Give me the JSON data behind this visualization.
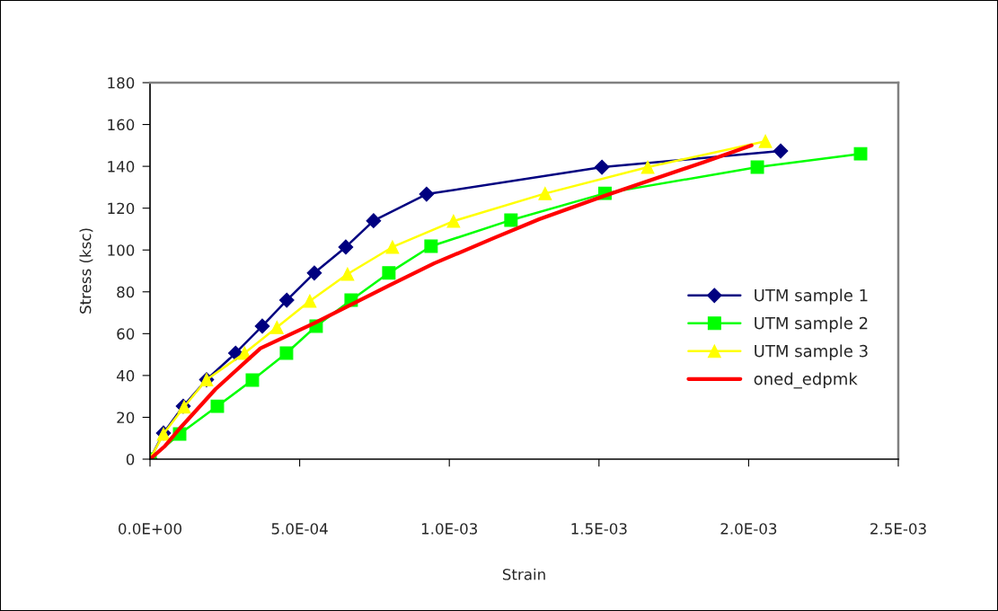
{
  "chart_data": {
    "type": "line",
    "xlabel": "Strain",
    "ylabel": "Stress (ksc)",
    "xlim": [
      0,
      0.0025
    ],
    "ylim": [
      0,
      180
    ],
    "xticks": [
      {
        "value": 0,
        "label": "0.0E+00"
      },
      {
        "value": 0.0005,
        "label": "5.0E-04"
      },
      {
        "value": 0.001,
        "label": "1.0E-03"
      },
      {
        "value": 0.0015,
        "label": "1.5E-03"
      },
      {
        "value": 0.002,
        "label": "2.0E-03"
      },
      {
        "value": 0.0025,
        "label": "2.5E-03"
      }
    ],
    "yticks": [
      0,
      20,
      40,
      60,
      80,
      100,
      120,
      140,
      160,
      180
    ],
    "grid": false,
    "legend": "right",
    "series": [
      {
        "name": "UTM sample 1",
        "color": "#000080",
        "marker": "diamond",
        "x": [
          0,
          4.5e-05,
          0.000111,
          0.000189,
          0.000286,
          0.000375,
          0.000457,
          0.000549,
          0.000654,
          0.000747,
          0.000924,
          0.00151,
          0.002107
        ],
        "values": [
          0,
          12.5,
          25.3,
          38,
          50.7,
          63.6,
          76,
          89,
          101.4,
          114,
          126.7,
          139.6,
          147.3
        ]
      },
      {
        "name": "UTM sample 2",
        "color": "#00ff00",
        "marker": "square",
        "x": [
          0,
          9.9e-05,
          0.000225,
          0.000342,
          0.000456,
          0.000555,
          0.000672,
          0.000798,
          0.000939,
          0.001206,
          0.00152,
          0.002029,
          0.002374
        ],
        "values": [
          0,
          12,
          25.3,
          37.8,
          50.7,
          63.6,
          76,
          89,
          101.8,
          114.3,
          127.1,
          139.6,
          146
        ]
      },
      {
        "name": "UTM sample 3",
        "color": "#ffff00",
        "marker": "triangle",
        "x": [
          0,
          4.5e-05,
          0.000114,
          0.000189,
          0.000316,
          0.000424,
          0.000534,
          0.00066,
          0.00081,
          0.001014,
          0.00132,
          0.001663,
          0.002056
        ],
        "values": [
          0,
          12,
          25,
          38,
          50.7,
          63,
          75.6,
          88.5,
          101.4,
          113.8,
          127,
          139.6,
          152
        ]
      },
      {
        "name": "oned_edpmk",
        "color": "#ff0000",
        "marker": "none",
        "x": [
          0,
          4.8e-05,
          9.9e-05,
          0.000219,
          0.000369,
          0.000549,
          0.000798,
          0.000949,
          0.001149,
          0.0013,
          0.00152,
          0.00185,
          0.00201
        ],
        "values": [
          0,
          6,
          14.6,
          33.5,
          53,
          65,
          83,
          93.6,
          105.7,
          114.7,
          126,
          142,
          150
        ]
      }
    ]
  }
}
